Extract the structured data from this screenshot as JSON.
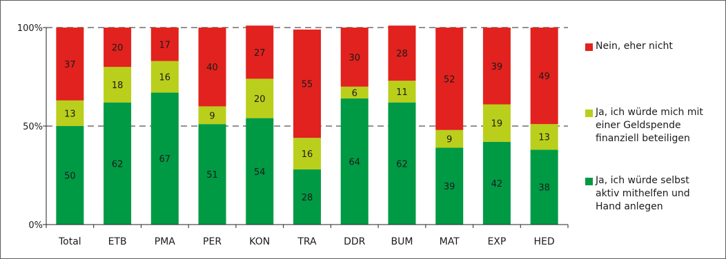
{
  "chart_data": {
    "type": "bar",
    "stacked": true,
    "categories": [
      "Total",
      "ETB",
      "PMA",
      "PER",
      "KON",
      "TRA",
      "DDR",
      "BUM",
      "MAT",
      "EXP",
      "HED"
    ],
    "series": [
      {
        "name": "Ja, ich würde selbst aktiv mithelfen und Hand anlegen",
        "color": "#009a44",
        "values": [
          50,
          62,
          67,
          51,
          54,
          28,
          64,
          62,
          39,
          42,
          38
        ]
      },
      {
        "name": "Ja, ich würde mich mit einer Geldspende finanziell beteiligen",
        "color": "#b9cf1b",
        "values": [
          13,
          18,
          16,
          9,
          20,
          16,
          6,
          11,
          9,
          19,
          13
        ]
      },
      {
        "name": "Nein, eher nicht",
        "color": "#e2221e",
        "values": [
          37,
          20,
          17,
          40,
          27,
          55,
          30,
          28,
          52,
          39,
          49
        ]
      }
    ],
    "yticks": [
      "0%",
      "50%",
      "100%"
    ],
    "ylim": [
      0,
      100
    ],
    "grid": "dashed at 50% and 100%",
    "legend_position": "right"
  },
  "legend": {
    "items": [
      {
        "label": "Nein, eher nicht",
        "color": "#e2221e"
      },
      {
        "label": "Ja, ich würde mich mit\neiner Geldspende\nfinanziell beteiligen",
        "color": "#b9cf1b"
      },
      {
        "label": "Ja, ich würde selbst\naktiv mithelfen und\nHand anlegen",
        "color": "#009a44"
      }
    ]
  }
}
